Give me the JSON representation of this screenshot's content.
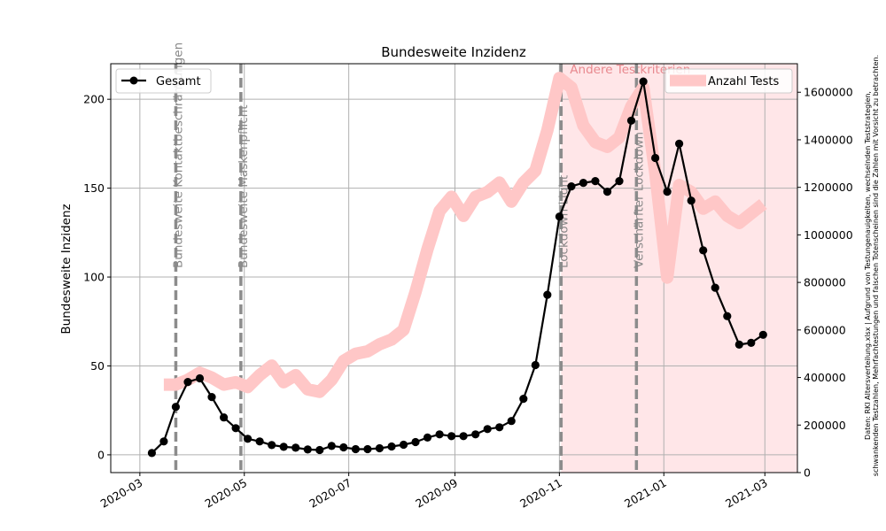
{
  "chart_data": {
    "type": "line",
    "title": "Bundesweite Inzidenz",
    "ylabel": "Bundesweite Inzidenz",
    "xlabel": "",
    "ylim": [
      -10,
      220
    ],
    "y2lim": [
      0,
      1720000
    ],
    "grid": true,
    "x_ticks": [
      "2020-03",
      "2020-05",
      "2020-07",
      "2020-09",
      "2020-11",
      "2021-01",
      "2021-03"
    ],
    "y_ticks": [
      "0",
      "50",
      "100",
      "150",
      "200"
    ],
    "y2_ticks": [
      "0",
      "200000",
      "400000",
      "600000",
      "800000",
      "1000000",
      "1200000",
      "1400000",
      "1600000"
    ],
    "series": [
      {
        "name": "Gesamt",
        "axis": "left",
        "color": "#000000",
        "marker": "circle",
        "x": [
          "2020-03-08",
          "2020-03-15",
          "2020-03-22",
          "2020-03-29",
          "2020-04-05",
          "2020-04-12",
          "2020-04-19",
          "2020-04-26",
          "2020-05-03",
          "2020-05-10",
          "2020-05-17",
          "2020-05-24",
          "2020-05-31",
          "2020-06-07",
          "2020-06-14",
          "2020-06-21",
          "2020-06-28",
          "2020-07-05",
          "2020-07-12",
          "2020-07-19",
          "2020-07-26",
          "2020-08-02",
          "2020-08-09",
          "2020-08-16",
          "2020-08-23",
          "2020-08-30",
          "2020-09-06",
          "2020-09-13",
          "2020-09-20",
          "2020-09-27",
          "2020-10-04",
          "2020-10-11",
          "2020-10-18",
          "2020-10-25",
          "2020-11-01",
          "2020-11-08",
          "2020-11-15",
          "2020-11-22",
          "2020-11-29",
          "2020-12-06",
          "2020-12-13",
          "2020-12-20",
          "2020-12-27",
          "2021-01-03",
          "2021-01-10",
          "2021-01-17",
          "2021-01-24",
          "2021-01-31",
          "2021-02-07",
          "2021-02-14",
          "2021-02-21",
          "2021-02-28"
        ],
        "values": [
          1,
          7.5,
          27,
          41,
          43,
          32.5,
          21,
          15,
          9,
          7.5,
          5.5,
          4.5,
          4,
          3,
          2.7,
          5,
          4.2,
          3.2,
          3.2,
          3.7,
          4.7,
          5.7,
          7.2,
          9.7,
          11.5,
          10.5,
          10.5,
          11.5,
          14.5,
          15.5,
          19,
          31.5,
          50.5,
          90,
          134,
          151,
          153,
          154,
          148,
          154,
          188,
          210,
          167,
          148,
          175,
          143,
          115,
          94,
          78,
          62,
          63,
          67.5
        ]
      },
      {
        "name": "Anzahl Tests",
        "axis": "right",
        "color": "#ffc7c7",
        "x": [
          "2020-03-15",
          "2020-03-22",
          "2020-03-29",
          "2020-04-05",
          "2020-04-12",
          "2020-04-19",
          "2020-04-26",
          "2020-05-03",
          "2020-05-10",
          "2020-05-17",
          "2020-05-24",
          "2020-05-31",
          "2020-06-07",
          "2020-06-14",
          "2020-06-21",
          "2020-06-28",
          "2020-07-05",
          "2020-07-12",
          "2020-07-19",
          "2020-07-26",
          "2020-08-02",
          "2020-08-09",
          "2020-08-16",
          "2020-08-23",
          "2020-08-30",
          "2020-09-06",
          "2020-09-13",
          "2020-09-20",
          "2020-09-27",
          "2020-10-04",
          "2020-10-11",
          "2020-10-18",
          "2020-10-25",
          "2020-11-01",
          "2020-11-08",
          "2020-11-15",
          "2020-11-22",
          "2020-11-29",
          "2020-12-06",
          "2020-12-13",
          "2020-12-20",
          "2020-12-27",
          "2021-01-03",
          "2021-01-10",
          "2021-01-17",
          "2021-01-24",
          "2021-01-31",
          "2021-02-07",
          "2021-02-14",
          "2021-02-21",
          "2021-02-28"
        ],
        "values": [
          370000,
          370000,
          390000,
          420000,
          400000,
          370000,
          380000,
          360000,
          410000,
          450000,
          380000,
          410000,
          350000,
          340000,
          390000,
          470000,
          500000,
          510000,
          540000,
          560000,
          600000,
          760000,
          940000,
          1100000,
          1160000,
          1080000,
          1160000,
          1180000,
          1220000,
          1140000,
          1220000,
          1270000,
          1440000,
          1660000,
          1620000,
          1460000,
          1390000,
          1370000,
          1410000,
          1540000,
          1620000,
          1260000,
          820000,
          1210000,
          1180000,
          1110000,
          1140000,
          1080000,
          1050000,
          1090000,
          1130000
        ]
      }
    ],
    "vlines": [
      {
        "x": "2020-03-22",
        "label": "Bundesweite Kontaktbeschränkungen"
      },
      {
        "x": "2020-04-29",
        "label": "Bundesweite Maskenpflicht"
      },
      {
        "x": "2020-11-02",
        "label": "Lockdown Light"
      },
      {
        "x": "2020-12-16",
        "label": "Verschärfter Lockdown"
      }
    ],
    "shaded_region": {
      "from": "2020-11-02",
      "to": "2021-03-20",
      "label": "Andere Testkriterien",
      "color": "#ffe6e8"
    },
    "legend_left": "top-left",
    "legend_right": "top-right"
  },
  "side_note": {
    "line1": "Daten: RKI Altersverteilung.xlsx | Aufgrund von Testungenauigkeiten, wechselnden Teststrategien,",
    "line2": "schwankenden Testzahlen, Mehrfachtestungen und falschen Totenscheinen sind die Zahlen mit Vorsicht zu betrachten."
  },
  "colors": {
    "vline": "#8c8c8c",
    "grid": "#b0b0b0",
    "vline_text": "#888888",
    "region_text": "#e8888e"
  }
}
